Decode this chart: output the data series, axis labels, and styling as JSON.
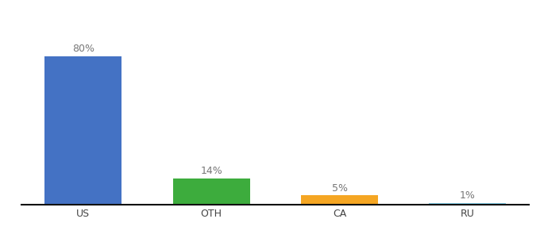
{
  "categories": [
    "US",
    "OTH",
    "CA",
    "RU"
  ],
  "values": [
    80,
    14,
    5,
    1
  ],
  "bar_colors": [
    "#4472c4",
    "#3dac3d",
    "#f5a623",
    "#7ec8e3"
  ],
  "labels": [
    "80%",
    "14%",
    "5%",
    "1%"
  ],
  "ylim": [
    0,
    95
  ],
  "background_color": "#ffffff",
  "label_fontsize": 9,
  "tick_fontsize": 9,
  "bar_width": 0.6
}
